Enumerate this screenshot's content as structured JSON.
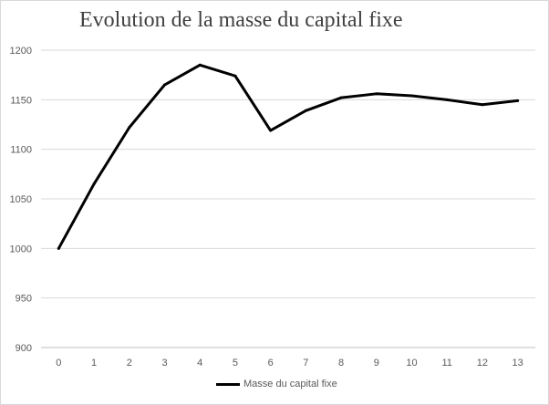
{
  "chart_data": {
    "type": "line",
    "title": "Evolution de la masse du capital fixe",
    "xlabel": "",
    "ylabel": "",
    "categories": [
      "0",
      "1",
      "2",
      "3",
      "4",
      "5",
      "6",
      "7",
      "8",
      "9",
      "10",
      "11",
      "12",
      "13"
    ],
    "series": [
      {
        "name": "Masse du capital fixe",
        "color": "#000000",
        "values": [
          1000,
          1065,
          1122,
          1165,
          1185,
          1174,
          1119,
          1139,
          1152,
          1156,
          1154,
          1150,
          1145,
          1149
        ]
      }
    ],
    "ylim": [
      900,
      1200
    ],
    "yticks": [
      "900",
      "950",
      "1000",
      "1050",
      "1100",
      "1150",
      "1200"
    ],
    "grid": true,
    "legend_position": "bottom"
  }
}
